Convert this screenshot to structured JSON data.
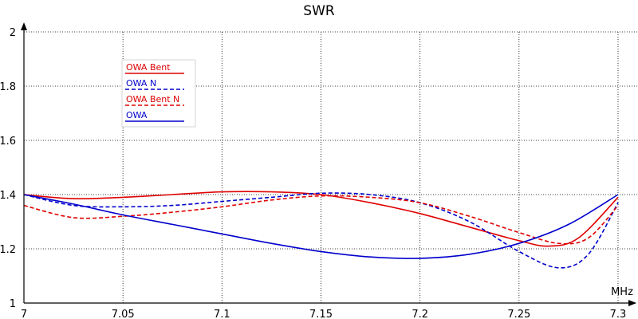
{
  "chart_data": {
    "type": "line",
    "title": "SWR",
    "xlabel": "MHz",
    "ylabel": "",
    "xlim": [
      7.0,
      7.3
    ],
    "ylim": [
      1.0,
      2.0
    ],
    "x_ticks": [
      "7",
      "7.05",
      "7.1",
      "7.15",
      "7.2",
      "7.25",
      "7.3"
    ],
    "y_ticks": [
      "1",
      "1.2",
      "1.4",
      "1.6",
      "1.8",
      "2"
    ],
    "x_tick_values": [
      7.0,
      7.05,
      7.1,
      7.15,
      7.2,
      7.25,
      7.3
    ],
    "y_tick_values": [
      1.0,
      1.2,
      1.4,
      1.6,
      1.8,
      2.0
    ],
    "grid": true,
    "legend_position": "top-left",
    "series": [
      {
        "name": "OWA Bent",
        "color": "#e00000",
        "dash": "solid",
        "x": [
          7.0,
          7.025,
          7.05,
          7.075,
          7.1,
          7.125,
          7.15,
          7.175,
          7.2,
          7.225,
          7.25,
          7.265,
          7.28,
          7.3
        ],
        "y": [
          1.4,
          1.385,
          1.39,
          1.4,
          1.41,
          1.41,
          1.4,
          1.37,
          1.33,
          1.28,
          1.23,
          1.21,
          1.24,
          1.39
        ]
      },
      {
        "name": "OWA N",
        "color": "#0000cc",
        "dash": "dashed",
        "x": [
          7.0,
          7.025,
          7.05,
          7.075,
          7.1,
          7.125,
          7.15,
          7.175,
          7.2,
          7.225,
          7.25,
          7.27,
          7.285,
          7.3
        ],
        "y": [
          1.4,
          1.36,
          1.355,
          1.36,
          1.375,
          1.39,
          1.405,
          1.4,
          1.37,
          1.3,
          1.19,
          1.13,
          1.18,
          1.37
        ]
      },
      {
        "name": "OWA Bent N",
        "color": "#e00000",
        "dash": "dashed",
        "x": [
          7.0,
          7.025,
          7.05,
          7.075,
          7.1,
          7.125,
          7.15,
          7.175,
          7.2,
          7.225,
          7.25,
          7.27,
          7.285,
          7.3
        ],
        "y": [
          1.36,
          1.315,
          1.32,
          1.335,
          1.355,
          1.38,
          1.395,
          1.39,
          1.37,
          1.32,
          1.26,
          1.22,
          1.24,
          1.36
        ]
      },
      {
        "name": "OWA",
        "color": "#0000cc",
        "dash": "solid",
        "x": [
          7.0,
          7.025,
          7.05,
          7.075,
          7.1,
          7.125,
          7.15,
          7.175,
          7.2,
          7.225,
          7.25,
          7.275,
          7.3
        ],
        "y": [
          1.4,
          1.365,
          1.325,
          1.29,
          1.255,
          1.22,
          1.19,
          1.17,
          1.165,
          1.18,
          1.22,
          1.29,
          1.4
        ]
      }
    ]
  }
}
